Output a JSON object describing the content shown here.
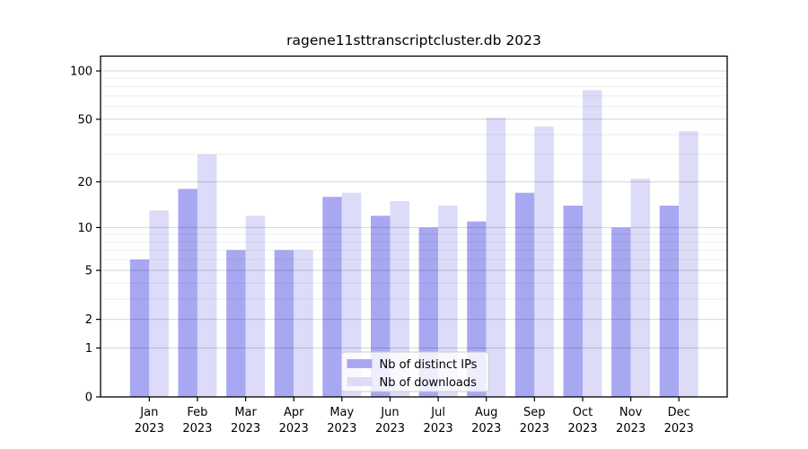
{
  "title": "ragene11sttranscriptcluster.db 2023",
  "chart_data": {
    "type": "bar",
    "title": "ragene11sttranscriptcluster.db 2023",
    "categories": [
      "Jan",
      "Feb",
      "Mar",
      "Apr",
      "May",
      "Jun",
      "Jul",
      "Aug",
      "Sep",
      "Oct",
      "Nov",
      "Dec"
    ],
    "year_label": "2023",
    "series": [
      {
        "name": "Nb of distinct IPs",
        "color": "#a8a8f2",
        "values": [
          6,
          18,
          7,
          7,
          16,
          12,
          10,
          11,
          17,
          14,
          10,
          14
        ]
      },
      {
        "name": "Nb of downloads",
        "color": "#dcdcf8",
        "values": [
          13,
          30,
          12,
          7,
          17,
          15,
          14,
          51,
          45,
          76,
          21,
          42
        ]
      }
    ],
    "y_scale": "log1p",
    "y_ticks": [
      0,
      1,
      2,
      5,
      10,
      20,
      50,
      100
    ],
    "y_minor_ticks": [
      3,
      4,
      6,
      7,
      8,
      9,
      30,
      40,
      60,
      70,
      80,
      90
    ],
    "ylim": [
      0,
      124
    ],
    "xlabel": "",
    "ylabel": "",
    "grid": true,
    "legend_position": "lower center"
  }
}
